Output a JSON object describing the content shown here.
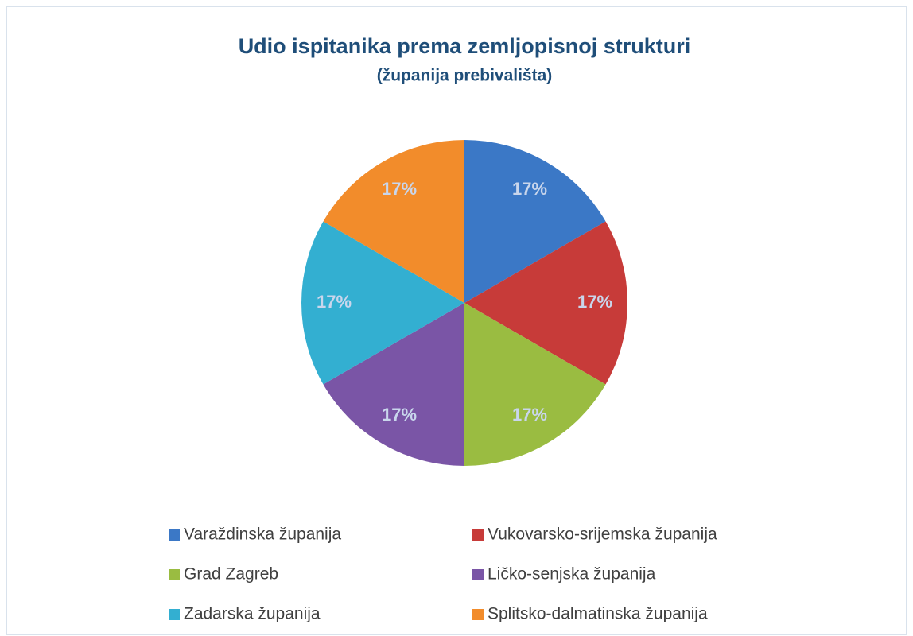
{
  "chart_data": {
    "type": "pie",
    "title": "Udio ispitanika prema zemljopisnoj strukturi",
    "subtitle": "(županija prebivališta)",
    "categories": [
      "Varaždinska županija",
      "Vukovarsko-srijemska županija",
      "Grad Zagreb",
      "Ličko-senjska županija",
      "Zadarska županija",
      "Splitsko-dalmatinska županija"
    ],
    "values": [
      17,
      17,
      17,
      17,
      17,
      17
    ],
    "value_labels": [
      "17%",
      "17%",
      "17%",
      "17%",
      "17%",
      "17%"
    ],
    "colors": [
      "#3b78c6",
      "#c73b39",
      "#9abc41",
      "#7a55a6",
      "#33afd1",
      "#f28c2b"
    ],
    "legend": "bottom"
  }
}
